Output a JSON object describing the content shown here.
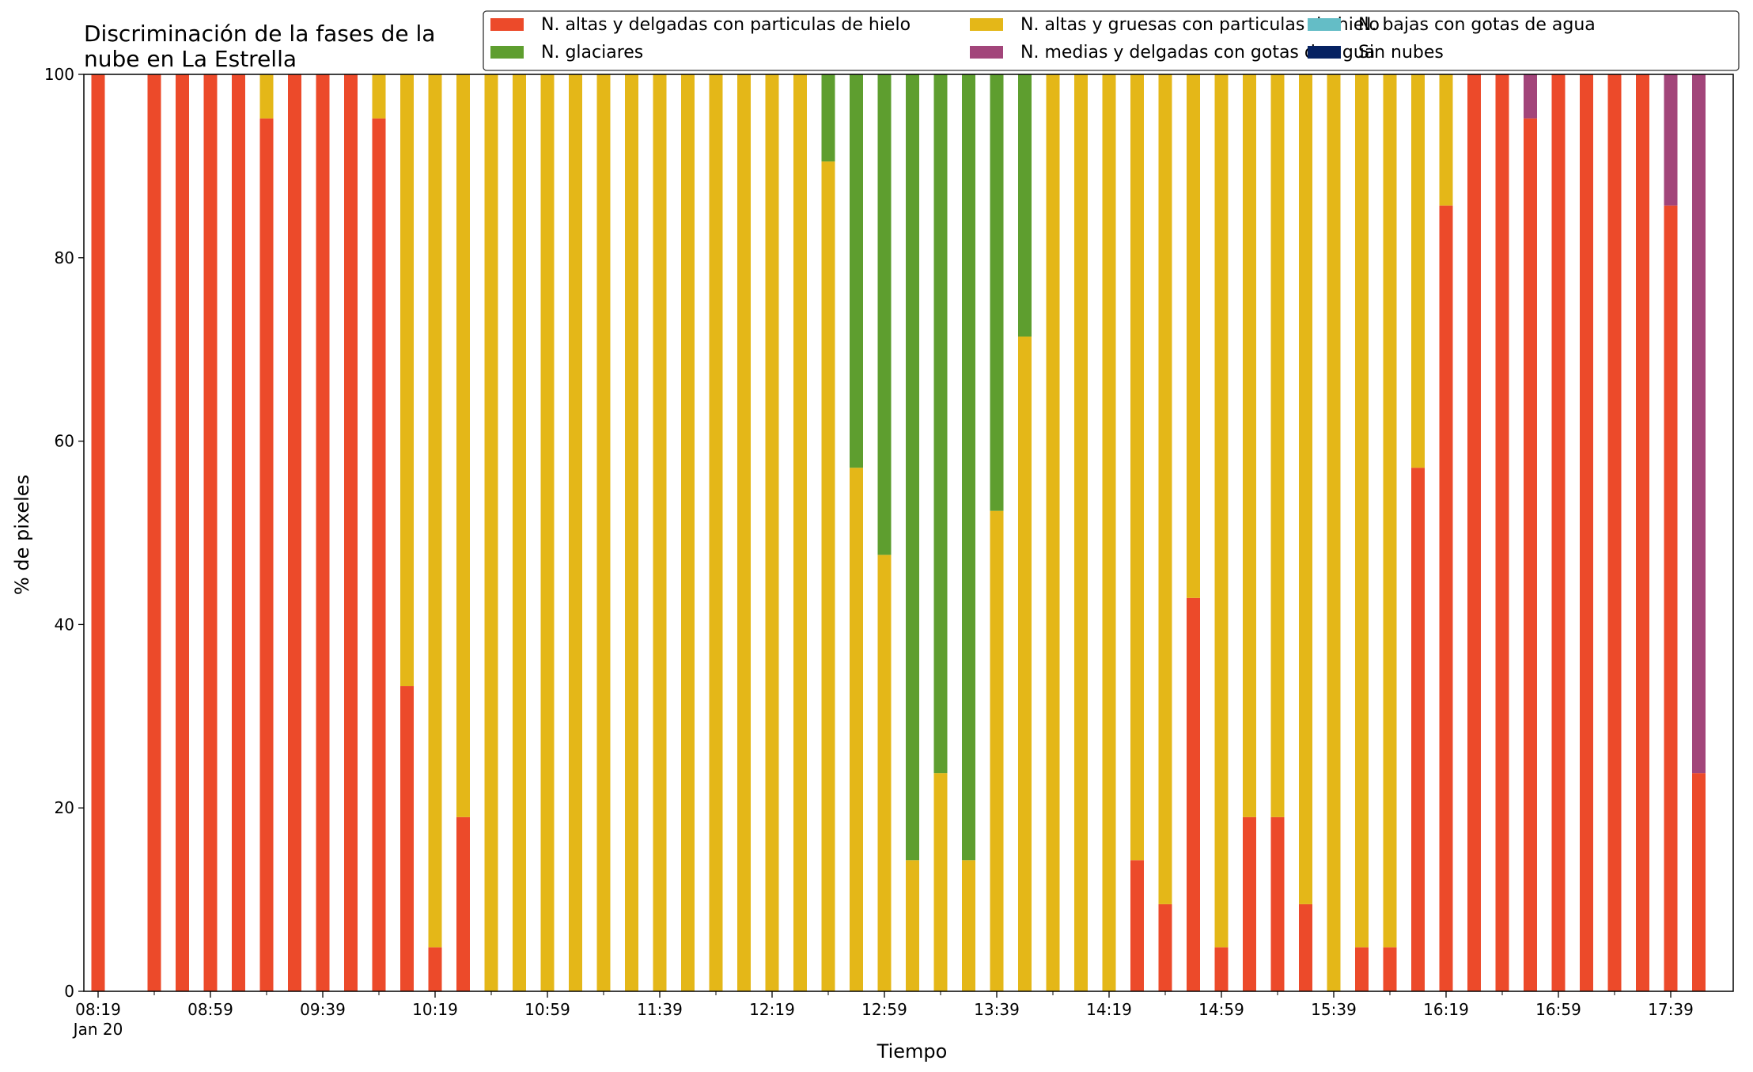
{
  "chart_data": {
    "type": "bar",
    "stacked": true,
    "title_lines": [
      "Discriminación de la fases de la",
      "nube en La Estrella"
    ],
    "xlabel": "Tiempo",
    "ylabel": "% de pixeles",
    "ylim": [
      0,
      100
    ],
    "yticks": [
      0,
      20,
      40,
      60,
      80,
      100
    ],
    "x_start": "08:19",
    "x_interval_minutes": 10,
    "xtick_labels": [
      "08:19",
      "08:59",
      "09:39",
      "10:19",
      "10:59",
      "11:39",
      "12:19",
      "12:59",
      "13:39",
      "14:19",
      "14:59",
      "15:39",
      "16:19",
      "16:59",
      "17:39"
    ],
    "xtick_sublabel": "Jan 20",
    "legend_location": "top-right",
    "legend_columns": 3,
    "series": [
      {
        "name": "N. altas y delgadas con particulas de hielo",
        "color": "#ec4a2a",
        "values": [
          100,
          null,
          100,
          100,
          100,
          100,
          95.2,
          100,
          100,
          100,
          95.2,
          33.3,
          4.8,
          19,
          0,
          0,
          0,
          0,
          0,
          0,
          0,
          0,
          0,
          0,
          0,
          0,
          0,
          0,
          0,
          0,
          0,
          0,
          0,
          0,
          0,
          0,
          0,
          14.3,
          9.5,
          42.9,
          4.8,
          19,
          19,
          9.5,
          0,
          4.8,
          4.8,
          57.1,
          85.7,
          100,
          100,
          95.2,
          100,
          100,
          100,
          100,
          85.7,
          23.8
        ]
      },
      {
        "name": "N. altas y gruesas con particulas de hielo",
        "color": "#e4b718",
        "values": [
          0,
          null,
          0,
          0,
          0,
          0,
          4.8,
          0,
          0,
          0,
          4.8,
          66.7,
          95.2,
          81,
          100,
          100,
          100,
          100,
          100,
          100,
          100,
          100,
          100,
          100,
          100,
          100,
          90.5,
          57.1,
          47.6,
          14.3,
          23.8,
          14.3,
          52.4,
          71.4,
          100,
          100,
          100,
          85.7,
          90.5,
          57.1,
          95.2,
          81,
          81,
          90.5,
          100,
          95.2,
          95.2,
          42.9,
          14.3,
          0,
          0,
          0,
          0,
          0,
          0,
          0,
          0,
          0
        ]
      },
      {
        "name": "N. bajas con gotas de agua",
        "color": "#64bdc6",
        "values": [
          0,
          null,
          0,
          0,
          0,
          0,
          0,
          0,
          0,
          0,
          0,
          0,
          0,
          0,
          0,
          0,
          0,
          0,
          0,
          0,
          0,
          0,
          0,
          0,
          0,
          0,
          0,
          0,
          0,
          0,
          0,
          0,
          0,
          0,
          0,
          0,
          0,
          0,
          0,
          0,
          0,
          0,
          0,
          0,
          0,
          0,
          0,
          0,
          0,
          0,
          0,
          0,
          0,
          0,
          0,
          0,
          0,
          0
        ]
      },
      {
        "name": "N. glaciares",
        "color": "#5e9e2f",
        "values": [
          0,
          null,
          0,
          0,
          0,
          0,
          0,
          0,
          0,
          0,
          0,
          0,
          0,
          0,
          0,
          0,
          0,
          0,
          0,
          0,
          0,
          0,
          0,
          0,
          0,
          0,
          9.5,
          42.9,
          52.4,
          85.7,
          76.2,
          85.7,
          47.6,
          28.6,
          0,
          0,
          0,
          0,
          0,
          0,
          0,
          0,
          0,
          0,
          0,
          0,
          0,
          0,
          0,
          0,
          0,
          0,
          0,
          0,
          0,
          0,
          0,
          0
        ]
      },
      {
        "name": "N. medias y delgadas con gotas de agua",
        "color": "#a2457a",
        "values": [
          0,
          null,
          0,
          0,
          0,
          0,
          0,
          0,
          0,
          0,
          0,
          0,
          0,
          0,
          0,
          0,
          0,
          0,
          0,
          0,
          0,
          0,
          0,
          0,
          0,
          0,
          0,
          0,
          0,
          0,
          0,
          0,
          0,
          0,
          0,
          0,
          0,
          0,
          0,
          0,
          0,
          0,
          0,
          0,
          0,
          0,
          0,
          0,
          0,
          0,
          0,
          4.8,
          0,
          0,
          0,
          0,
          14.3,
          76.2
        ]
      },
      {
        "name": "Sin nubes",
        "color": "#062262",
        "values": [
          0,
          null,
          0,
          0,
          0,
          0,
          0,
          0,
          0,
          0,
          0,
          0,
          0,
          0,
          0,
          0,
          0,
          0,
          0,
          0,
          0,
          0,
          0,
          0,
          0,
          0,
          0,
          0,
          0,
          0,
          0,
          0,
          0,
          0,
          0,
          0,
          0,
          0,
          0,
          0,
          0,
          0,
          0,
          0,
          0,
          0,
          0,
          0,
          0,
          0,
          0,
          0,
          0,
          0,
          0,
          0,
          0,
          0
        ]
      }
    ]
  }
}
